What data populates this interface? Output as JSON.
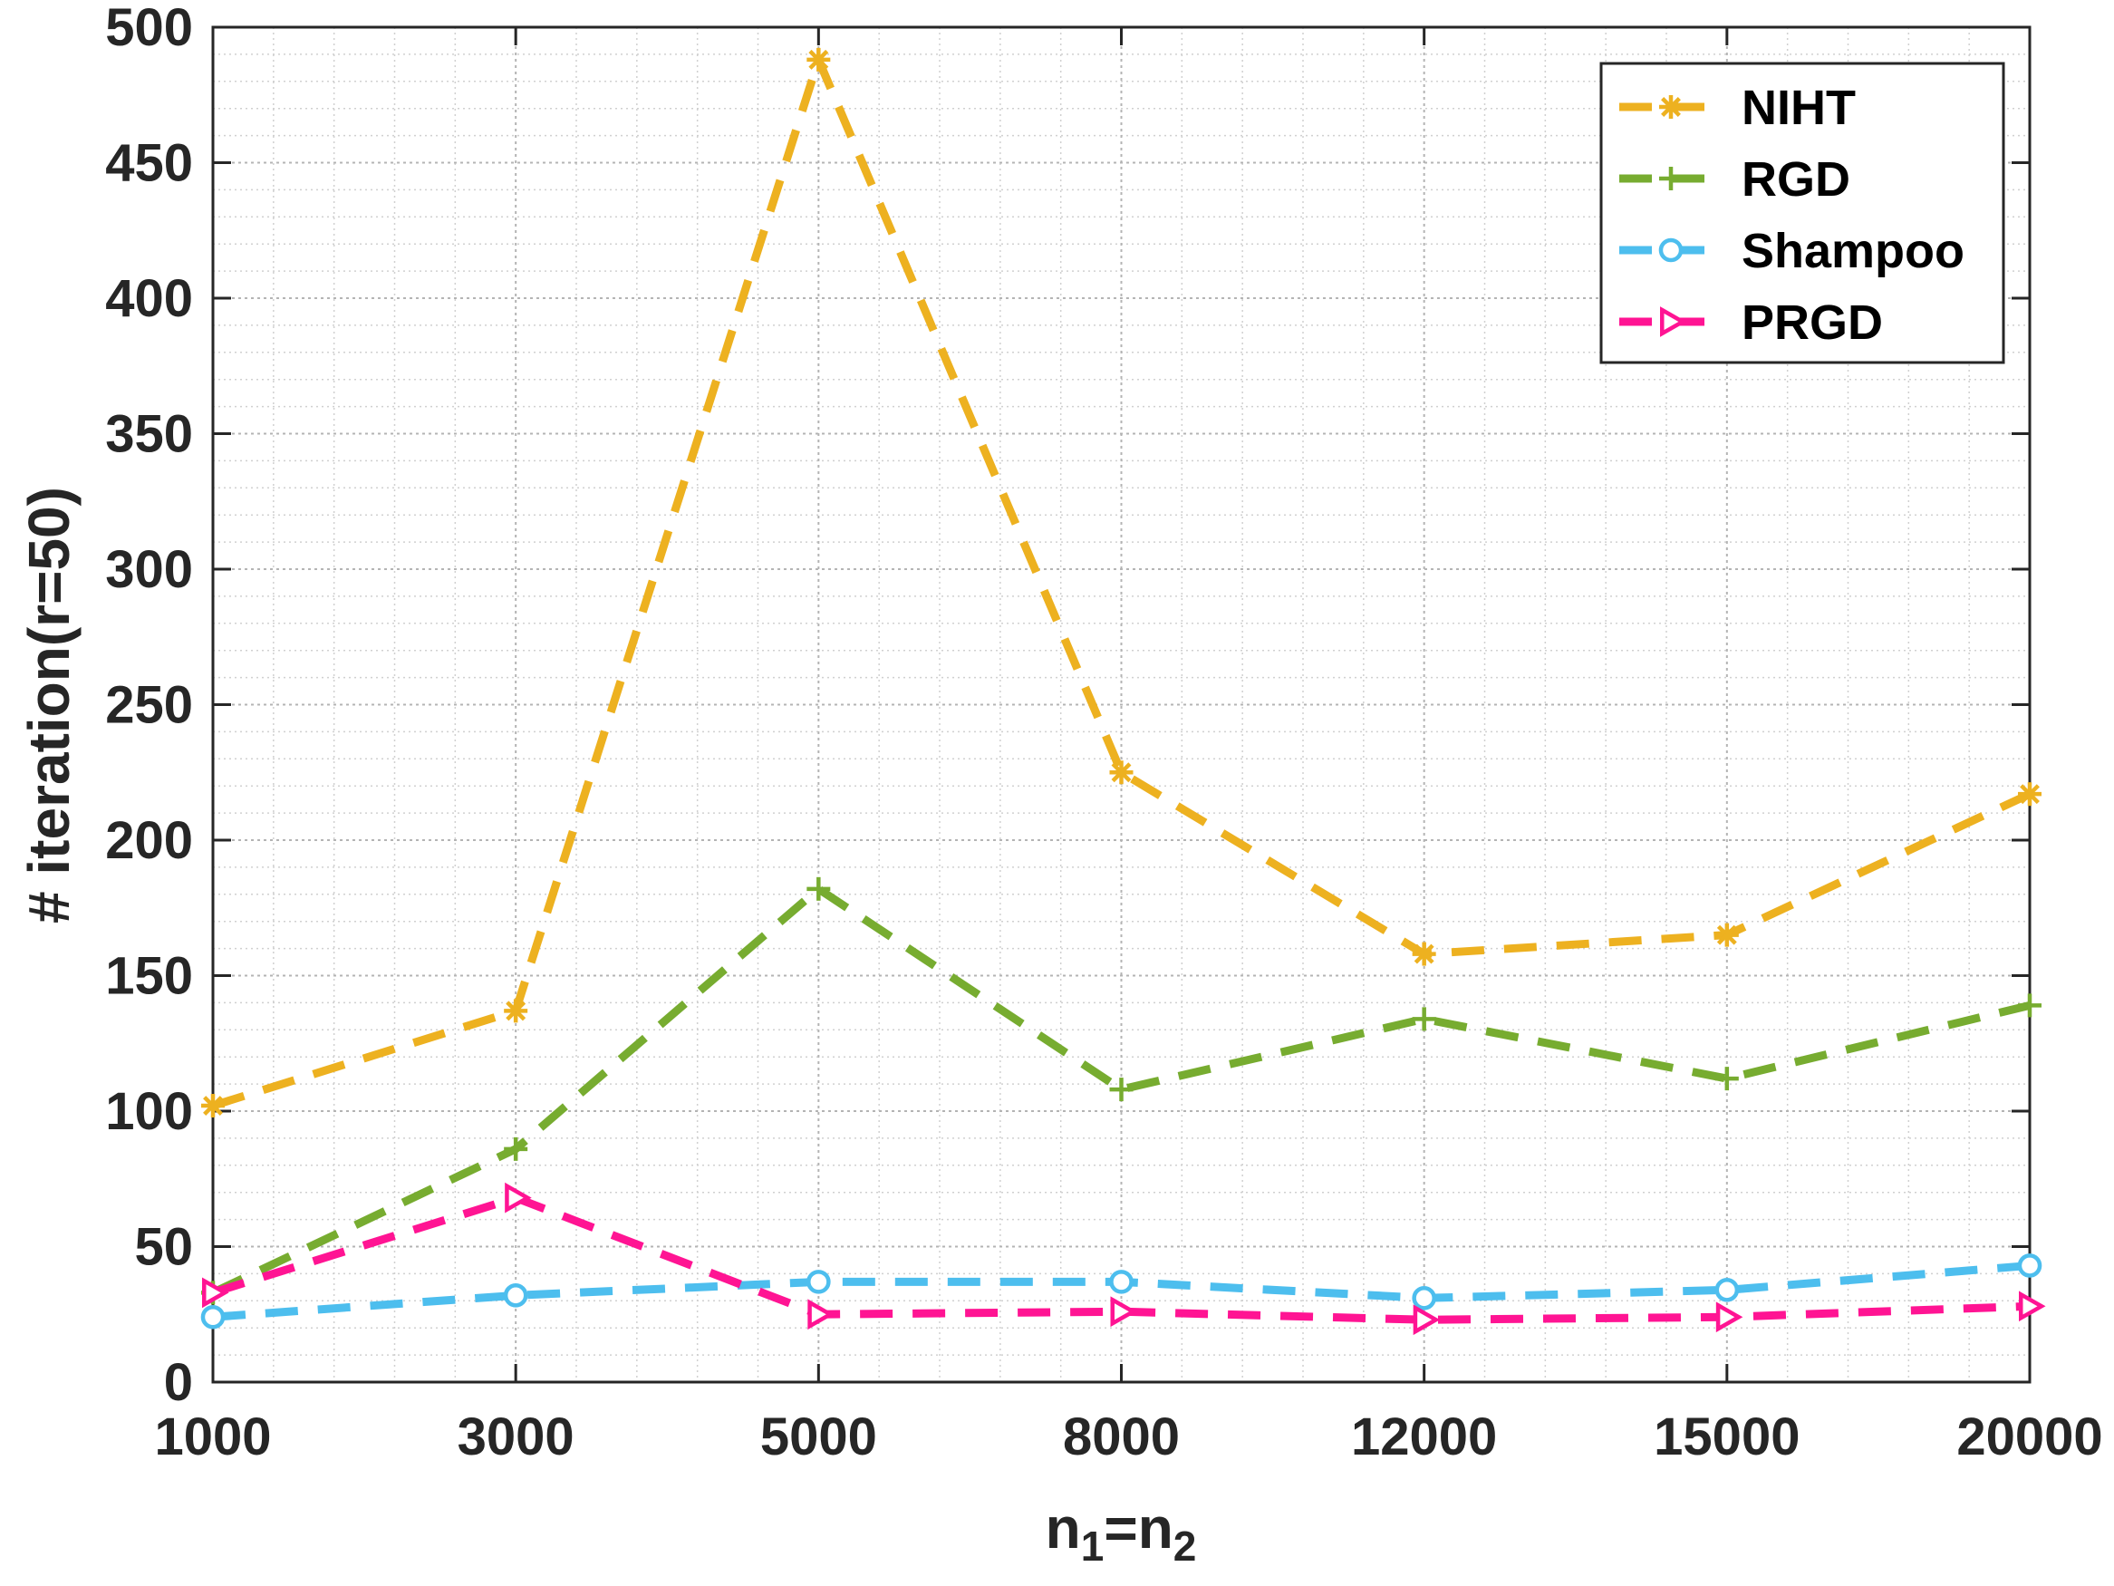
{
  "chart_data": {
    "type": "line",
    "categories": [
      "1000",
      "3000",
      "5000",
      "8000",
      "12000",
      "15000",
      "20000"
    ],
    "xlabel": {
      "main": "n",
      "sub1": "1",
      "eq": "=n",
      "sub2": "2"
    },
    "ylabel": "# iteration(r=50)",
    "ylim": [
      0,
      500
    ],
    "yticks": [
      0,
      50,
      100,
      150,
      200,
      250,
      300,
      350,
      400,
      450,
      500
    ],
    "grid": "major and minor, dotted",
    "legend_position": "top-right",
    "series": [
      {
        "name": "NIHT",
        "color": "#EDB120",
        "marker": "asterisk",
        "values": [
          102,
          137,
          488,
          225,
          158,
          165,
          217
        ]
      },
      {
        "name": "RGD",
        "color": "#77AC30",
        "marker": "plus",
        "values": [
          33,
          86,
          182,
          108,
          134,
          112,
          139
        ]
      },
      {
        "name": "Shampoo",
        "color": "#4DBEEE",
        "marker": "circle",
        "values": [
          24,
          32,
          37,
          37,
          31,
          34,
          43
        ]
      },
      {
        "name": "PRGD",
        "color": "#FF1493",
        "marker": "triangle-right",
        "values": [
          33,
          68,
          25,
          26,
          23,
          24,
          28
        ]
      }
    ]
  }
}
